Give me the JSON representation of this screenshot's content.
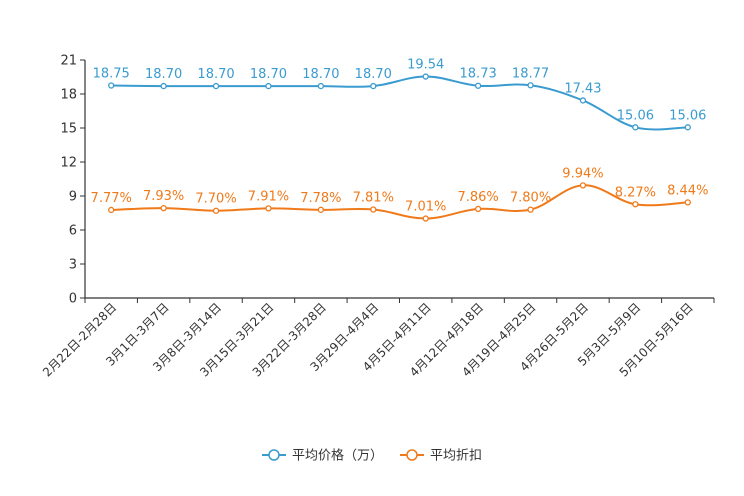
{
  "chart_data": {
    "type": "line",
    "title": "",
    "xlabel": "",
    "ylabel": "",
    "ylim": [
      0,
      21
    ],
    "yticks": [
      0,
      3,
      6,
      9,
      12,
      15,
      18,
      21
    ],
    "grid": false,
    "legend_position": "bottom-center",
    "categories": [
      "2月22日-2月28日",
      "3月1日-3月7日",
      "3月8日-3月14日",
      "3月15日-3月21日",
      "3月22日-3月28日",
      "3月29日-4月4日",
      "4月5日-4月11日",
      "4月12日-4月18日",
      "4月19日-4月25日",
      "4月26日-5月2日",
      "5月3日-5月9日",
      "5月10日-5月16日"
    ],
    "series": [
      {
        "name": "平均价格（万）",
        "color": "#3a9bd0",
        "values": [
          18.75,
          18.7,
          18.7,
          18.7,
          18.7,
          18.7,
          19.54,
          18.73,
          18.77,
          17.43,
          15.06,
          15.06
        ],
        "labels": [
          "18.75",
          "18.70",
          "18.70",
          "18.70",
          "18.70",
          "18.70",
          "19.54",
          "18.73",
          "18.77",
          "17.43",
          "15.06",
          "15.06"
        ]
      },
      {
        "name": "平均折扣",
        "color": "#f07a1a",
        "values": [
          7.77,
          7.93,
          7.7,
          7.91,
          7.78,
          7.81,
          7.01,
          7.86,
          7.8,
          9.94,
          8.27,
          8.44
        ],
        "labels": [
          "7.77%",
          "7.93%",
          "7.70%",
          "7.91%",
          "7.78%",
          "7.81%",
          "7.01%",
          "7.86%",
          "7.80%",
          "9.94%",
          "8.27%",
          "8.44%"
        ]
      }
    ]
  }
}
